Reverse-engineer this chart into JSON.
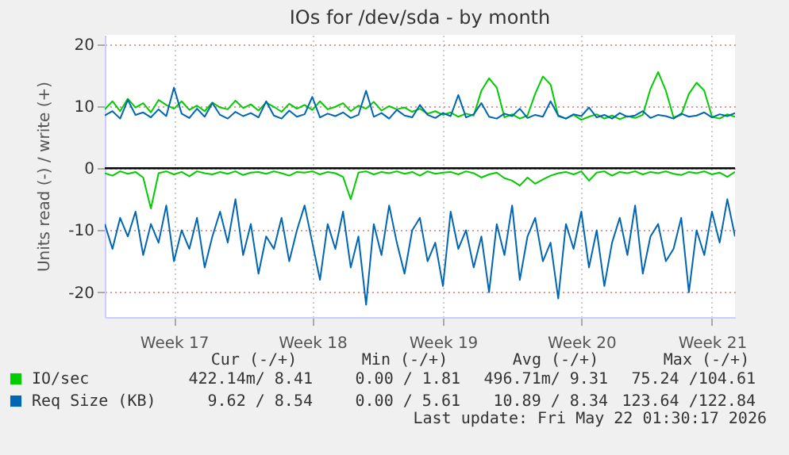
{
  "chart_data": {
    "type": "line",
    "title": "IOs for /dev/sda - by month",
    "ylabel": "Units read (-) / write (+)",
    "categories": [
      null,
      null,
      null,
      null,
      null,
      null,
      null,
      null,
      null,
      "Week 17",
      null,
      null,
      null,
      null,
      null,
      null,
      null,
      null,
      null,
      null,
      null,
      null,
      null,
      null,
      null,
      null,
      null,
      "Week 18",
      null,
      null,
      null,
      null,
      null,
      null,
      null,
      null,
      null,
      null,
      null,
      null,
      null,
      null,
      null,
      null,
      "Week 19",
      null,
      null,
      null,
      null,
      null,
      null,
      null,
      null,
      null,
      null,
      null,
      null,
      null,
      null,
      null,
      null,
      null,
      "Week 20",
      null,
      null,
      null,
      null,
      null,
      null,
      null,
      null,
      null,
      null,
      null,
      null,
      null,
      null,
      null,
      null,
      "Week 21",
      null,
      null,
      null
    ],
    "series": [
      {
        "name": "IO/sec",
        "color": "#00cc00",
        "values": [
          9.5,
          10.8,
          9.2,
          11.2,
          9.8,
          10.5,
          9.0,
          11.0,
          10.2,
          9.6,
          10.8,
          9.4,
          10.1,
          9.2,
          10.6,
          9.8,
          9.5,
          10.9,
          9.7,
          10.3,
          9.3,
          10.6,
          9.9,
          9.1,
          10.4,
          9.6,
          10.2,
          9.4,
          10.8,
          9.5,
          9.9,
          10.5,
          9.2,
          10.1,
          9.6,
          10.7,
          9.3,
          10.0,
          9.5,
          9.8,
          9.1,
          9.6,
          8.8,
          9.2,
          8.6,
          9.0,
          8.3,
          8.8,
          8.5,
          12.5,
          14.5,
          13.0,
          8.2,
          8.7,
          8.0,
          8.5,
          12.0,
          14.8,
          13.5,
          8.4,
          8.0,
          8.6,
          7.8,
          8.3,
          8.7,
          8.0,
          8.5,
          7.9,
          8.4,
          8.1,
          8.6,
          12.8,
          15.5,
          12.5,
          8.2,
          8.6,
          12.0,
          13.8,
          12.5,
          8.3,
          8.0,
          8.7,
          8.3
        ]
      },
      {
        "color": "#00cc00",
        "values": [
          -0.8,
          -1.2,
          -0.5,
          -0.9,
          -0.6,
          -1.5,
          -6.5,
          -0.8,
          -0.5,
          -1.0,
          -0.6,
          -1.3,
          -0.5,
          -0.8,
          -1.0,
          -0.6,
          -0.9,
          -0.5,
          -1.1,
          -0.7,
          -0.6,
          -0.9,
          -0.5,
          -0.8,
          -1.2,
          -0.6,
          -0.7,
          -0.5,
          -1.0,
          -0.6,
          -0.8,
          -1.4,
          -5.0,
          -0.7,
          -0.5,
          -1.0,
          -0.6,
          -0.8,
          -0.5,
          -0.9,
          -0.6,
          -1.2,
          -0.5,
          -0.9,
          -0.7,
          -0.6,
          -1.0,
          -0.5,
          -0.8,
          -1.5,
          -1.0,
          -0.7,
          -1.6,
          -2.0,
          -2.8,
          -1.5,
          -2.5,
          -1.8,
          -1.2,
          -0.8,
          -0.6,
          -1.0,
          -0.5,
          -2.0,
          -0.7,
          -0.5,
          -1.2,
          -0.6,
          -0.8,
          -0.5,
          -1.0,
          -0.6,
          -0.8,
          -0.5,
          -0.9,
          -1.1,
          -0.6,
          -0.8,
          -0.5,
          -1.0,
          -0.7,
          -1.4,
          -0.6
        ]
      },
      {
        "name": "Req Size (KB)",
        "color": "#0066b3",
        "values": [
          8.5,
          9.2,
          8.0,
          11.0,
          8.6,
          9.0,
          8.2,
          9.5,
          8.4,
          13.0,
          8.8,
          8.1,
          9.6,
          8.3,
          10.5,
          8.6,
          8.0,
          9.1,
          8.4,
          8.9,
          8.2,
          10.8,
          8.5,
          8.0,
          9.3,
          8.3,
          8.7,
          11.5,
          8.2,
          8.8,
          8.4,
          9.0,
          8.1,
          8.6,
          12.5,
          8.3,
          8.9,
          8.0,
          9.4,
          8.5,
          8.2,
          10.2,
          8.6,
          8.1,
          8.9,
          8.4,
          11.8,
          8.2,
          8.7,
          10.5,
          8.3,
          8.0,
          8.8,
          8.4,
          9.6,
          8.1,
          8.6,
          8.3,
          10.8,
          8.5,
          8.0,
          8.7,
          8.4,
          9.8,
          8.2,
          8.6,
          8.0,
          8.9,
          8.3,
          8.5,
          9.2,
          8.1,
          8.6,
          8.4,
          8.0,
          8.8,
          8.3,
          8.5,
          9.0,
          8.2,
          8.7,
          8.4,
          8.9
        ]
      },
      {
        "color": "#0066b3",
        "values": [
          -9,
          -13,
          -8,
          -11,
          -7,
          -14,
          -9,
          -12,
          -6,
          -15,
          -10,
          -13,
          -8,
          -16,
          -11,
          -7,
          -12,
          -5,
          -14,
          -9,
          -17,
          -11,
          -13,
          -8,
          -15,
          -10,
          -6,
          -12,
          -18,
          -9,
          -13,
          -7,
          -16,
          -11,
          -22,
          -9,
          -14,
          -6,
          -12,
          -17,
          -10,
          -8,
          -15,
          -12,
          -19,
          -7,
          -13,
          -10,
          -16,
          -11,
          -20,
          -9,
          -14,
          -6,
          -18,
          -11,
          -8,
          -15,
          -12,
          -21,
          -9,
          -13,
          -7,
          -16,
          -10,
          -19,
          -12,
          -8,
          -14,
          -6,
          -17,
          -11,
          -9,
          -15,
          -13,
          -8,
          -20,
          -10,
          -14,
          -7,
          -12,
          -5,
          -11
        ]
      }
    ],
    "ylim": [
      -24,
      21.5
    ],
    "yticks": [
      -20,
      -10,
      0,
      10,
      20
    ],
    "ref_lines": [
      {
        "axis": "y",
        "value": 0,
        "color": "#000000"
      }
    ],
    "grid": true,
    "legend": "bottom",
    "marker": "none",
    "line_style": "solid",
    "annotations": [
      "Cur (-/+)",
      "Min (-/+)",
      "Avg (-/+)",
      "Max (-/+)",
      "422.14m/ 8.41",
      "0.00 / 1.81",
      "496.71m/ 9.31",
      "75.24 /104.61",
      "9.62 / 8.54",
      "0.00 / 5.61",
      "10.89 / 8.34",
      "123.64 /122.84",
      "Last update: Fri May 22 01:30:17 2026"
    ]
  }
}
